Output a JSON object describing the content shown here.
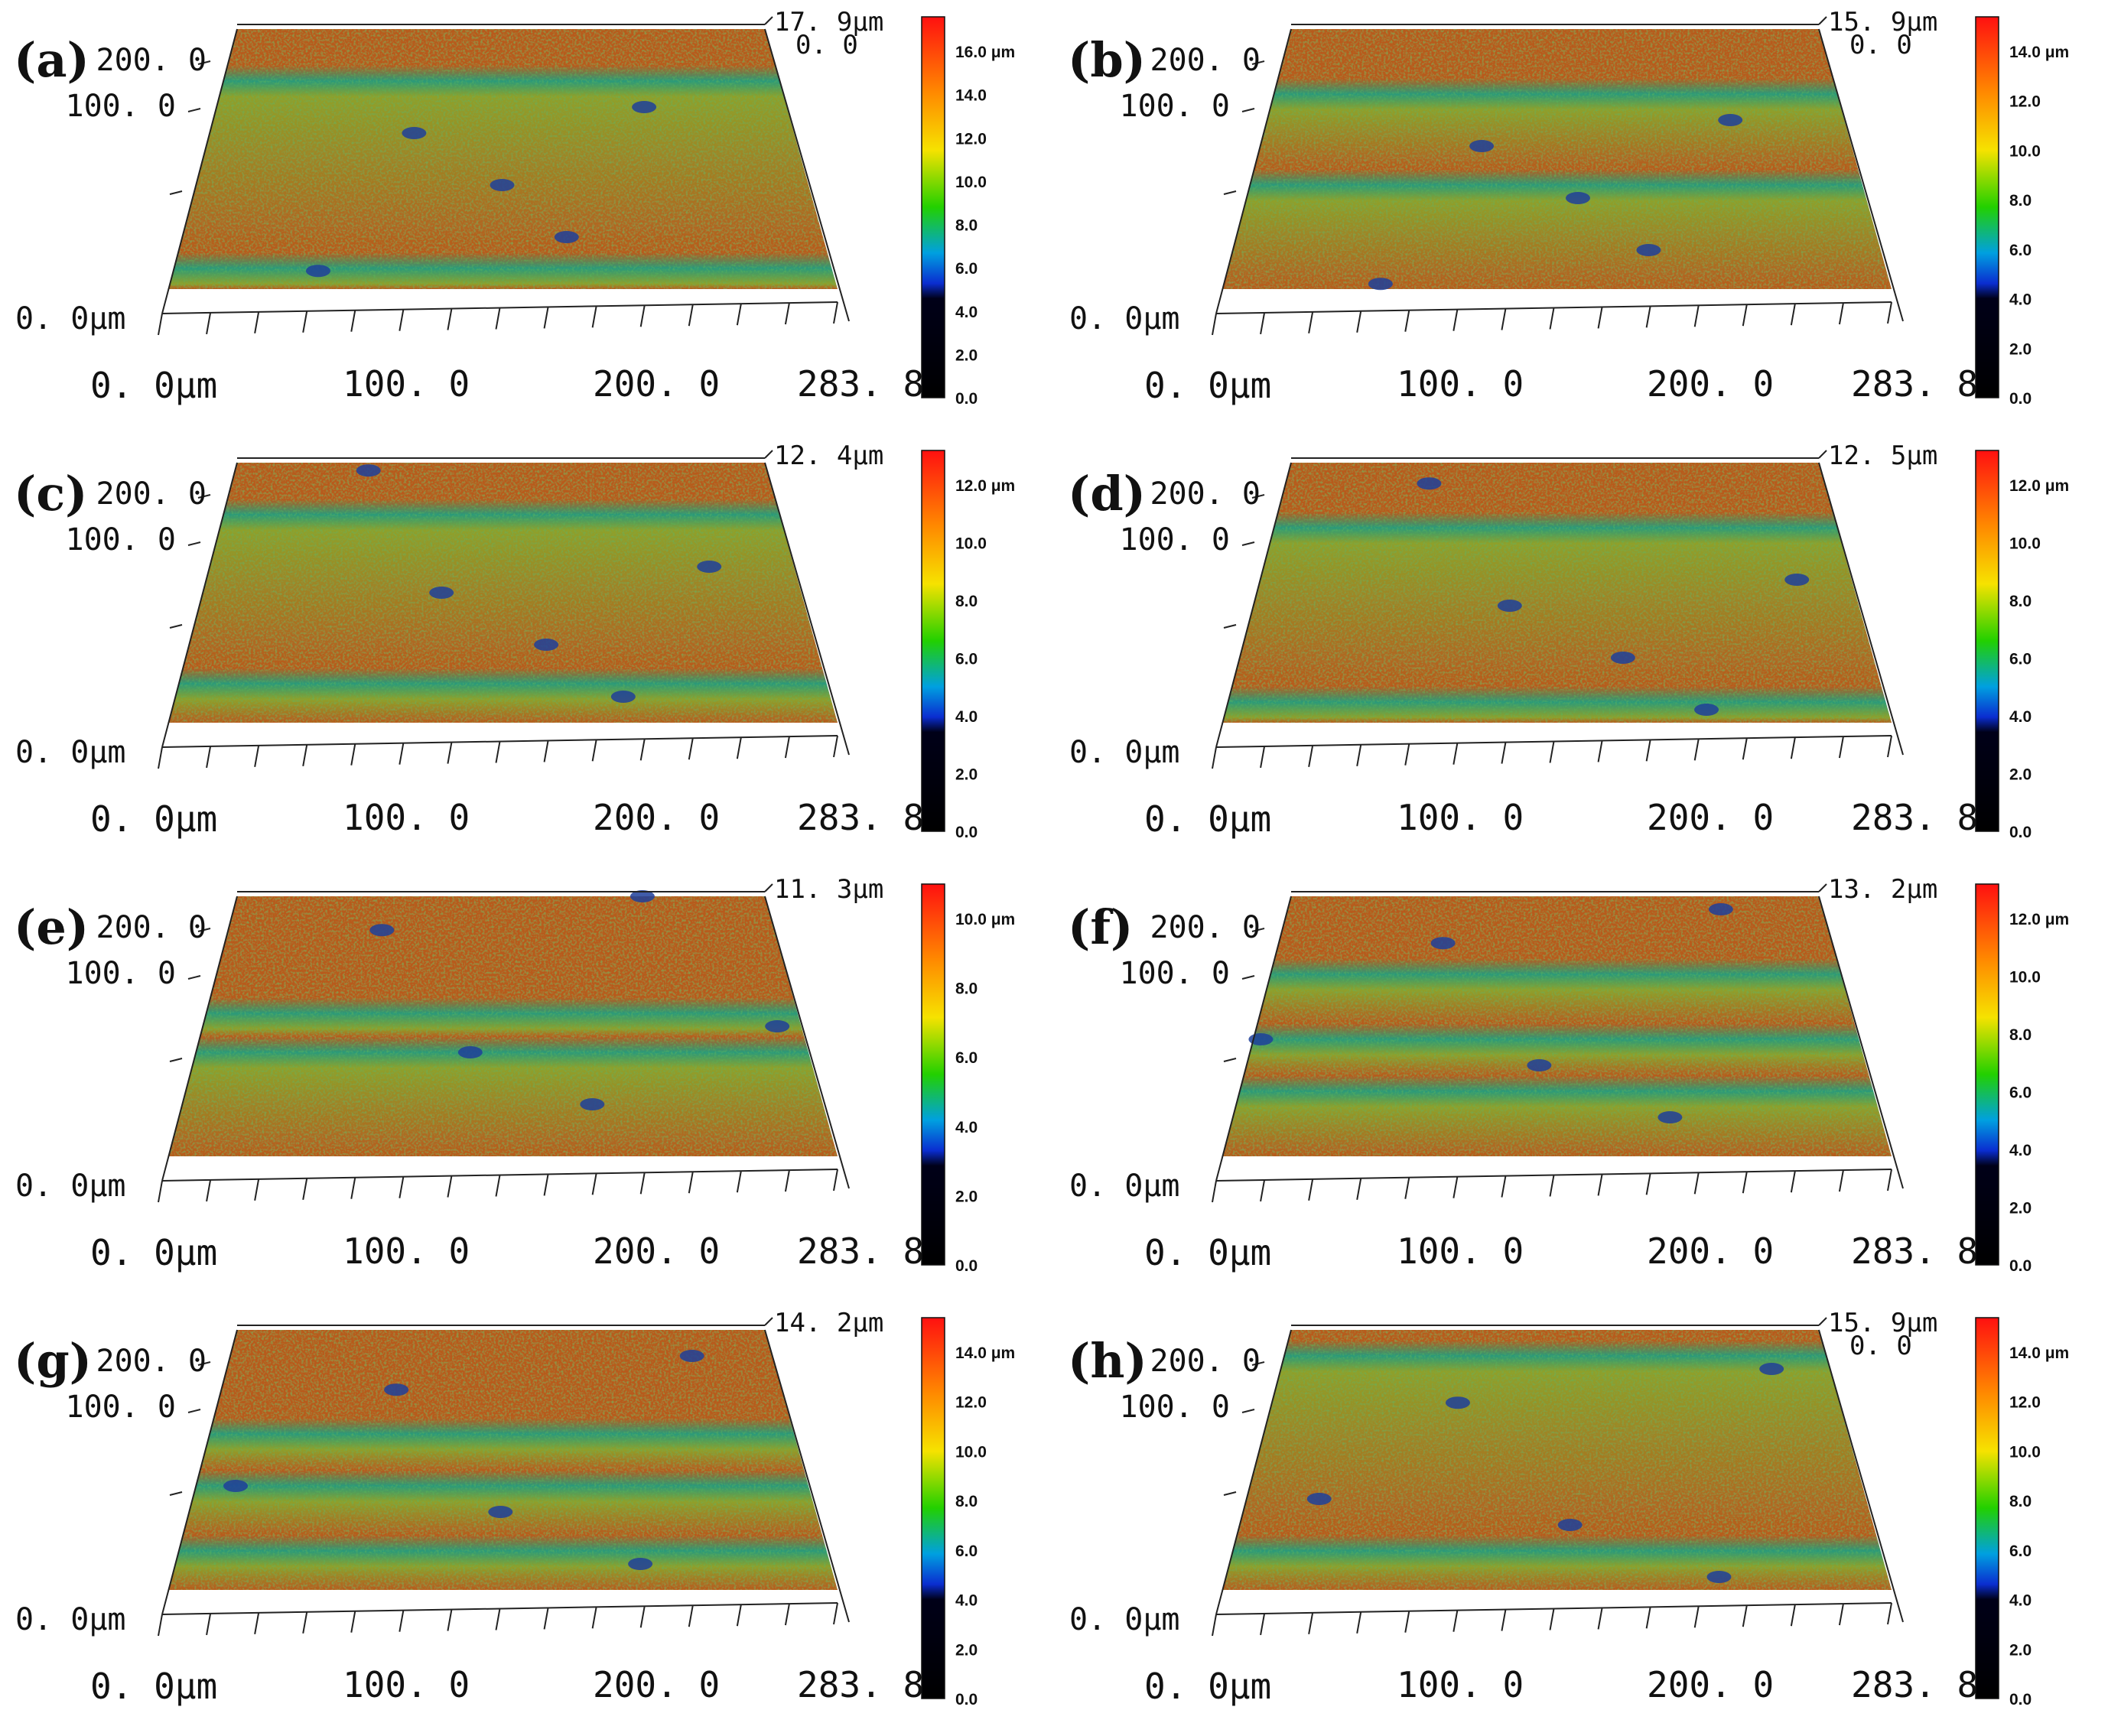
{
  "figure": {
    "panels": [
      {
        "id": "a",
        "letter": "(a)",
        "ytop": "200. 0",
        "ymid": "100. 0",
        "yzero": "0. 0μm",
        "x0": "0. 0μm",
        "x1": "100. 0",
        "x2": "200. 0",
        "x3": "283. 8",
        "zmax": "17. 9μm",
        "zmin": "0. 0",
        "cb": [
          "16.0 μm",
          "14.0",
          "12.0",
          "10.0",
          "8.0",
          "6.0",
          "4.0",
          "2.0",
          "0.0"
        ]
      },
      {
        "id": "b",
        "letter": "(b)",
        "ytop": "200. 0",
        "ymid": "100. 0",
        "yzero": "0. 0μm",
        "x0": "0. 0μm",
        "x1": "100. 0",
        "x2": "200. 0",
        "x3": "283. 8",
        "zmax": "15. 9μm",
        "zmin": "0. 0",
        "cb": [
          "14.0 μm",
          "12.0",
          "10.0",
          "8.0",
          "6.0",
          "4.0",
          "2.0",
          "0.0"
        ]
      },
      {
        "id": "c",
        "letter": "(c)",
        "ytop": "200. 0",
        "ymid": "100. 0",
        "yzero": "0. 0μm",
        "x0": "0. 0μm",
        "x1": "100. 0",
        "x2": "200. 0",
        "x3": "283. 8",
        "zmax": "12. 4μm",
        "zmin": "",
        "cb": [
          "12.0 μm",
          "10.0",
          "8.0",
          "6.0",
          "4.0",
          "2.0",
          "0.0"
        ]
      },
      {
        "id": "d",
        "letter": "(d)",
        "ytop": "200. 0",
        "ymid": "100. 0",
        "yzero": "0. 0μm",
        "x0": "0. 0μm",
        "x1": "100. 0",
        "x2": "200. 0",
        "x3": "283. 8",
        "zmax": "12. 5μm",
        "zmin": "",
        "cb": [
          "12.0 μm",
          "10.0",
          "8.0",
          "6.0",
          "4.0",
          "2.0",
          "0.0"
        ]
      },
      {
        "id": "e",
        "letter": "(e)",
        "ytop": "200. 0",
        "ymid": "100. 0",
        "yzero": "0. 0μm",
        "x0": "0. 0μm",
        "x1": "100. 0",
        "x2": "200. 0",
        "x3": "283. 8",
        "zmax": "11. 3μm",
        "zmin": "",
        "cb": [
          "10.0 μm",
          "8.0",
          "6.0",
          "4.0",
          "2.0",
          "0.0"
        ]
      },
      {
        "id": "f",
        "letter": "(f)",
        "ytop": "200. 0",
        "ymid": "100. 0",
        "yzero": "0. 0μm",
        "x0": "0. 0μm",
        "x1": "100. 0",
        "x2": "200. 0",
        "x3": "283. 8",
        "zmax": "13. 2μm",
        "zmin": "",
        "cb": [
          "12.0 μm",
          "10.0",
          "8.0",
          "6.0",
          "4.0",
          "2.0",
          "0.0"
        ]
      },
      {
        "id": "g",
        "letter": "(g)",
        "ytop": "200. 0",
        "ymid": "100. 0",
        "yzero": "0. 0μm",
        "x0": "0. 0μm",
        "x1": "100. 0",
        "x2": "200. 0",
        "x3": "283. 8",
        "zmax": "14. 2μm",
        "zmin": "",
        "cb": [
          "14.0 μm",
          "12.0",
          "10.0",
          "8.0",
          "6.0",
          "4.0",
          "2.0",
          "0.0"
        ]
      },
      {
        "id": "h",
        "letter": "(h)",
        "ytop": "200. 0",
        "ymid": "100. 0",
        "yzero": "0. 0μm",
        "x0": "0. 0μm",
        "x1": "100. 0",
        "x2": "200. 0",
        "x3": "283. 8",
        "zmax": "15. 9μm",
        "zmin": "0. 0",
        "cb": [
          "14.0 μm",
          "12.0",
          "10.0",
          "8.0",
          "6.0",
          "4.0",
          "2.0",
          "0.0"
        ]
      }
    ]
  },
  "colors": {
    "surface_high": "#b85a1e",
    "surface_mid": "#8fa02a",
    "surface_low": "#2a9a7a",
    "pit": "#1f3f9a"
  }
}
